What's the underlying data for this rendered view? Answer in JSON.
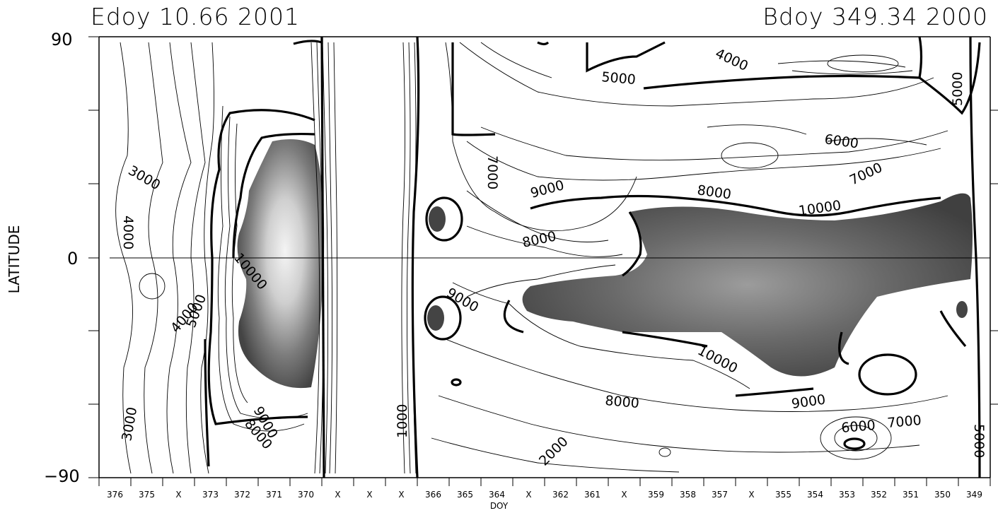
{
  "header": {
    "left": "Edoy  10.66 2001",
    "right": "Bdoy 349.34 2000"
  },
  "chart_data": {
    "type": "contour",
    "title": "",
    "xlabel": "DOY",
    "ylabel": "LATITUDE",
    "ylim": [
      -90,
      90
    ],
    "yticks": [
      "90",
      "0",
      "−90"
    ],
    "x_tick_labels": [
      "376",
      "375",
      "X",
      "373",
      "372",
      "371",
      "370",
      "X",
      "X",
      "X",
      "366",
      "365",
      "364",
      "X",
      "362",
      "361",
      "X",
      "359",
      "358",
      "357",
      "X",
      "355",
      "354",
      "353",
      "352",
      "351",
      "350",
      "349"
    ],
    "contour_labels": [
      "4000",
      "5000",
      "6000",
      "7000",
      "8000",
      "9000",
      "10000",
      "3000",
      "1000"
    ],
    "shading": "grayscale fill above 10000, lighter = higher",
    "equator_line": true
  }
}
